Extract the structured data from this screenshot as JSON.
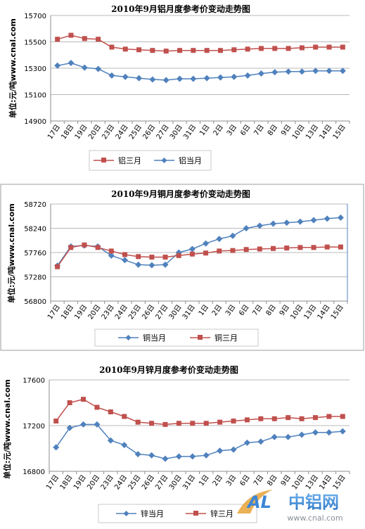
{
  "watermark": {
    "brand": "中铝网",
    "logo": "AL",
    "url": "www.cnal.com"
  },
  "chart_data": [
    {
      "type": "line",
      "title": "2010年9月铝月度参考价变动走势图",
      "ylabel": "单位:元/吨www.cnal.com",
      "ylim": [
        14900,
        15700
      ],
      "yticks": [
        "15700",
        "15500",
        "15300",
        "15100",
        "14900"
      ],
      "categories": [
        "17日",
        "18日",
        "19日",
        "20日",
        "23日",
        "24日",
        "25日",
        "26日",
        "27日",
        "30日",
        "31日",
        "1日",
        "2日",
        "3日",
        "6日",
        "7日",
        "8日",
        "9日",
        "10日",
        "13日",
        "14日",
        "15日"
      ],
      "series": [
        {
          "name": "铝三月",
          "color": "#C0504D",
          "marker": "square",
          "values": [
            15520,
            15550,
            15525,
            15520,
            15460,
            15445,
            15440,
            15435,
            15430,
            15435,
            15435,
            15435,
            15435,
            15440,
            15445,
            15450,
            15450,
            15450,
            15455,
            15460,
            15460,
            15460
          ]
        },
        {
          "name": "铝当月",
          "color": "#4F81BD",
          "marker": "diamond",
          "values": [
            15320,
            15340,
            15305,
            15295,
            15245,
            15235,
            15225,
            15215,
            15210,
            15220,
            15220,
            15225,
            15230,
            15235,
            15245,
            15260,
            15270,
            15275,
            15275,
            15280,
            15280,
            15280
          ]
        }
      ],
      "legend": [
        "铝三月",
        "铝当月"
      ]
    },
    {
      "type": "line",
      "title": "2010年9月铜月度参考价变动走势图",
      "ylabel": "单位:元/吨www.cnal.com",
      "ylim": [
        56800,
        58720
      ],
      "yticks": [
        "58720",
        "58240",
        "57760",
        "57280",
        "56800"
      ],
      "categories": [
        "17日",
        "18日",
        "19日",
        "20日",
        "23日",
        "24日",
        "25日",
        "26日",
        "27日",
        "30日",
        "31日",
        "1日",
        "2日",
        "3日",
        "6日",
        "7日",
        "8日",
        "9日",
        "10日",
        "13日",
        "14日",
        "15日"
      ],
      "series": [
        {
          "name": "铜当月",
          "color": "#4F81BD",
          "marker": "diamond",
          "values": [
            57500,
            57880,
            57900,
            57880,
            57700,
            57610,
            57520,
            57510,
            57520,
            57760,
            57830,
            57940,
            58030,
            58090,
            58240,
            58290,
            58330,
            58350,
            58370,
            58400,
            58430,
            58450
          ]
        },
        {
          "name": "铜三月",
          "color": "#C0504D",
          "marker": "square",
          "values": [
            57480,
            57860,
            57910,
            57860,
            57790,
            57720,
            57680,
            57670,
            57670,
            57700,
            57730,
            57750,
            57790,
            57800,
            57820,
            57830,
            57840,
            57850,
            57860,
            57860,
            57870,
            57870
          ]
        }
      ],
      "legend": [
        "铜当月",
        "铜三月"
      ]
    },
    {
      "type": "line",
      "title": "2010年9月锌月度参考价变动走势图",
      "ylabel": "单位:元/吨www.cnal.com",
      "ylim": [
        16800,
        17600
      ],
      "yticks": [
        "17600",
        "17200",
        "16800"
      ],
      "categories": [
        "17日",
        "18日",
        "19日",
        "20日",
        "23日",
        "24日",
        "25日",
        "26日",
        "27日",
        "30日",
        "31日",
        "1日",
        "2日",
        "3日",
        "6日",
        "7日",
        "8日",
        "9日",
        "10日",
        "13日",
        "14日",
        "15日"
      ],
      "series": [
        {
          "name": "锌当月",
          "color": "#4F81BD",
          "marker": "diamond",
          "values": [
            17010,
            17180,
            17210,
            17210,
            17070,
            17030,
            16950,
            16940,
            16910,
            16930,
            16930,
            16940,
            16980,
            16990,
            17050,
            17060,
            17100,
            17100,
            17120,
            17140,
            17140,
            17150
          ]
        },
        {
          "name": "锌三月",
          "color": "#C0504D",
          "marker": "square",
          "values": [
            17240,
            17400,
            17430,
            17360,
            17320,
            17280,
            17230,
            17220,
            17210,
            17220,
            17220,
            17220,
            17230,
            17240,
            17250,
            17260,
            17260,
            17270,
            17260,
            17270,
            17280,
            17280
          ]
        }
      ],
      "legend": [
        "锌当月",
        "锌三月"
      ]
    }
  ]
}
